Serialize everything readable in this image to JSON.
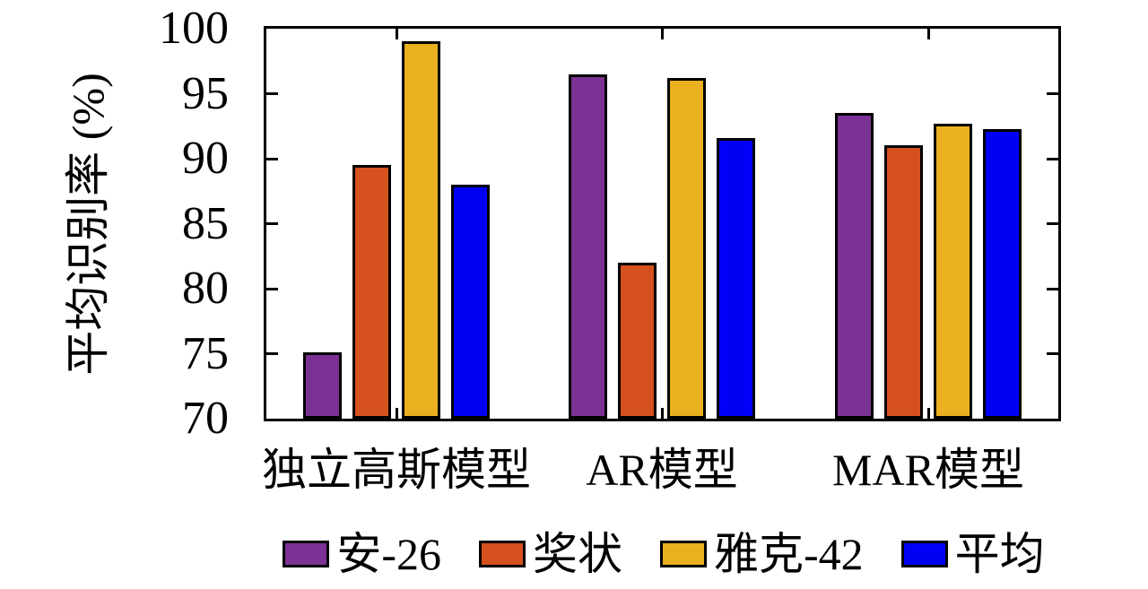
{
  "chart_data": {
    "type": "bar",
    "title": "",
    "xlabel": "",
    "ylabel": "平均识别率 (%)",
    "ylim": [
      70,
      100
    ],
    "yticks": [
      70,
      75,
      80,
      85,
      90,
      95,
      100
    ],
    "grid": false,
    "legend_position": "bottom",
    "categories": [
      "独立高斯模型",
      "AR模型",
      "MAR模型"
    ],
    "series": [
      {
        "name": "安-26",
        "color": "#7B3294",
        "values": [
          75.1,
          96.5,
          93.5
        ]
      },
      {
        "name": "奖状",
        "color": "#D5511D",
        "values": [
          89.5,
          82.0,
          91.0
        ]
      },
      {
        "name": "雅克-42",
        "color": "#EAB01F",
        "values": [
          99.0,
          96.2,
          92.7
        ]
      },
      {
        "name": "平均",
        "color": "#0000F5",
        "values": [
          88.0,
          91.6,
          92.3
        ]
      }
    ],
    "axis_color": "#000000"
  }
}
